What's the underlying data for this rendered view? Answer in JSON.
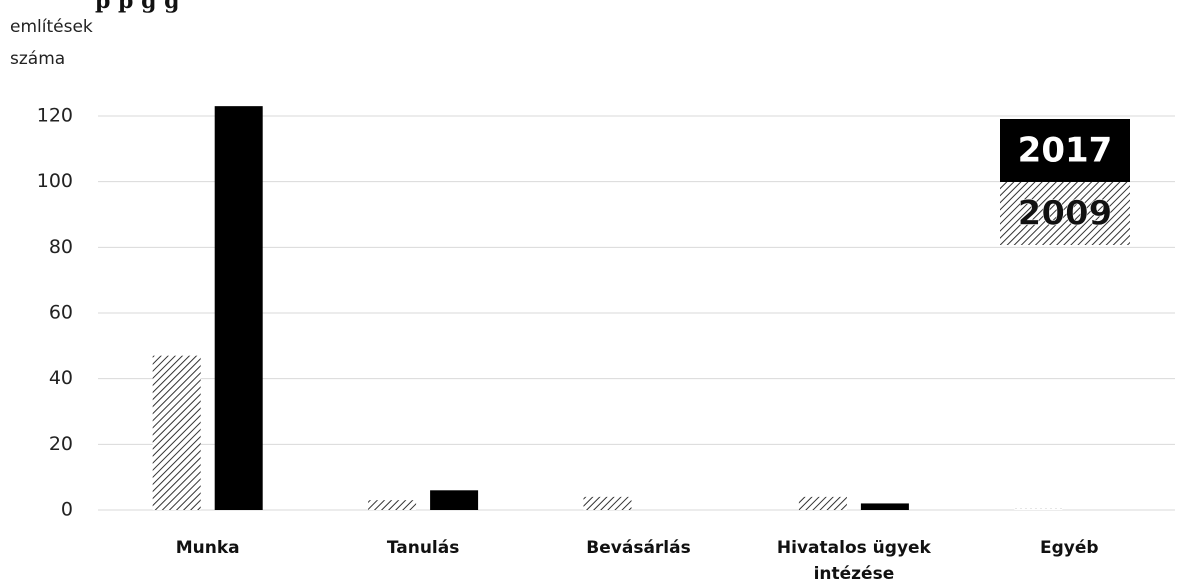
{
  "title": "p                               p g                                                g",
  "chart_data": {
    "type": "bar",
    "ylabel_lines": [
      "említések",
      "száma"
    ],
    "categories": [
      [
        "Munka"
      ],
      [
        "Tanulás"
      ],
      [
        "Bevásárlás"
      ],
      [
        "Hivatalos ügyek",
        "intézése"
      ],
      [
        "Egyéb"
      ]
    ],
    "series": [
      {
        "name": "2009",
        "values": [
          47,
          3,
          4,
          4,
          0.5
        ],
        "fill": "hatch"
      },
      {
        "name": "2017",
        "values": [
          123,
          6,
          0,
          2,
          0
        ],
        "fill": "#000000"
      }
    ],
    "yticks": [
      0,
      20,
      40,
      60,
      80,
      100,
      120
    ],
    "ylim": [
      0,
      120
    ],
    "grid": true,
    "legend_position": "top-right",
    "colors": {
      "hatch_line": "#333333",
      "solid": "#000000",
      "grid": "#d9d9d9"
    }
  }
}
